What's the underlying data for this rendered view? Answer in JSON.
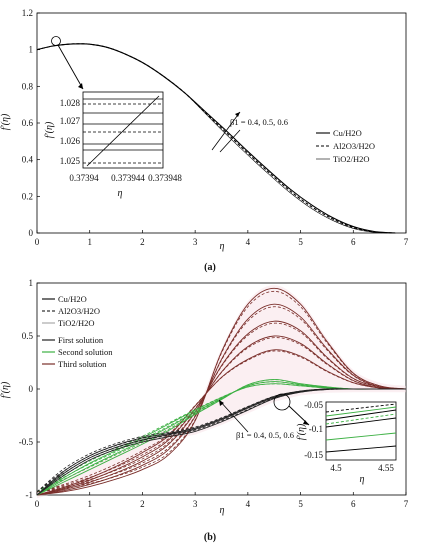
{
  "chart_data": [
    {
      "type": "line",
      "caption": "(a)",
      "xlabel": "η",
      "ylabel": "f′(η)",
      "xlim": [
        0,
        7
      ],
      "ylim": [
        0,
        1.2
      ],
      "xticks": [
        "0",
        "1",
        "2",
        "3",
        "4",
        "5",
        "6",
        "7"
      ],
      "yticks": [
        "0",
        "0.2",
        "0.4",
        "0.6",
        "0.8",
        "1",
        "1.2"
      ],
      "legend": [
        {
          "label": "Cu/H2O",
          "style": "solid"
        },
        {
          "label": "Al2O3/H2O",
          "style": "dashed"
        },
        {
          "label": "TiO2/H2O",
          "style": "thin"
        }
      ],
      "annotation": "β1 = 0.4, 0.5, 0.6",
      "x": [
        0,
        0.3,
        0.6,
        0.8,
        1.0,
        1.3,
        1.6,
        2.0,
        2.4,
        2.8,
        3.2,
        3.6,
        4.0,
        4.4,
        4.8,
        5.2,
        5.6,
        6.0,
        6.4,
        6.8
      ],
      "series": [
        {
          "values": [
            1.0,
            1.02,
            1.03,
            1.032,
            1.03,
            1.015,
            0.985,
            0.93,
            0.855,
            0.765,
            0.66,
            0.555,
            0.445,
            0.34,
            0.24,
            0.155,
            0.085,
            0.035,
            0.008,
            0.0
          ]
        },
        {
          "values": [
            1.0,
            1.02,
            1.03,
            1.032,
            1.03,
            1.015,
            0.985,
            0.93,
            0.855,
            0.765,
            0.655,
            0.545,
            0.435,
            0.33,
            0.23,
            0.145,
            0.078,
            0.03,
            0.006,
            0.0
          ]
        },
        {
          "values": [
            1.0,
            1.02,
            1.03,
            1.032,
            1.03,
            1.015,
            0.985,
            0.93,
            0.855,
            0.765,
            0.65,
            0.535,
            0.425,
            0.32,
            0.22,
            0.135,
            0.07,
            0.025,
            0.004,
            0.0
          ]
        }
      ],
      "inset": {
        "xlabel": "η",
        "ylabel": "f′(η)",
        "xticks": [
          "0.37394",
          "0.373944",
          "0.373948"
        ],
        "yticks": [
          "1.025",
          "1.026",
          "1.027",
          "1.028"
        ]
      }
    },
    {
      "type": "line",
      "caption": "(b)",
      "xlabel": "η",
      "ylabel": "f′(η)",
      "xlim": [
        0,
        7
      ],
      "ylim": [
        -1,
        1
      ],
      "xticks": [
        "0",
        "1",
        "2",
        "3",
        "4",
        "5",
        "6",
        "7"
      ],
      "yticks": [
        "-1",
        "-0.5",
        "0",
        "0.5",
        "1"
      ],
      "legend_materials": [
        {
          "label": "Cu/H2O",
          "style": "solid"
        },
        {
          "label": "Al2O3/H2O",
          "style": "dashed"
        },
        {
          "label": "TiO2/H2O",
          "style": "thin"
        }
      ],
      "legend_solutions": [
        {
          "label": "First solution",
          "color": "#222222"
        },
        {
          "label": "Second solution",
          "color": "#3cb043"
        },
        {
          "label": "Third solution",
          "color": "#7a2e2a"
        }
      ],
      "annotation": "β1 = 0.4, 0.5, 0.6",
      "x": [
        0,
        0.5,
        1.0,
        1.5,
        2.0,
        2.5,
        3.0,
        3.5,
        4.0,
        4.5,
        5.0,
        5.5,
        6.0,
        6.5,
        7.0
      ],
      "first": [
        [
          -1.0,
          -0.78,
          -0.63,
          -0.53,
          -0.46,
          -0.42,
          -0.37,
          -0.28,
          -0.17,
          -0.07,
          -0.02,
          0.0,
          0.0,
          0.0,
          0.0
        ],
        [
          -1.0,
          -0.8,
          -0.65,
          -0.55,
          -0.48,
          -0.43,
          -0.38,
          -0.29,
          -0.18,
          -0.08,
          -0.025,
          0.0,
          0.0,
          0.0,
          0.0
        ],
        [
          -1.0,
          -0.82,
          -0.67,
          -0.57,
          -0.5,
          -0.45,
          -0.4,
          -0.31,
          -0.2,
          -0.09,
          -0.03,
          -0.005,
          0.0,
          0.0,
          0.0
        ]
      ],
      "second": [
        [
          -1.0,
          -0.84,
          -0.7,
          -0.58,
          -0.46,
          -0.33,
          -0.2,
          -0.08,
          0.02,
          0.05,
          0.03,
          0.01,
          0.0,
          0.0,
          0.0
        ],
        [
          -1.0,
          -0.86,
          -0.73,
          -0.61,
          -0.49,
          -0.36,
          -0.22,
          -0.09,
          0.03,
          0.07,
          0.04,
          0.015,
          0.0,
          0.0,
          0.0
        ],
        [
          -1.0,
          -0.88,
          -0.76,
          -0.64,
          -0.52,
          -0.39,
          -0.24,
          -0.1,
          0.04,
          0.09,
          0.05,
          0.02,
          0.0,
          0.0,
          0.0
        ]
      ],
      "third": [
        [
          -1.0,
          -0.97,
          -0.92,
          -0.85,
          -0.76,
          -0.62,
          -0.3,
          0.35,
          0.8,
          0.95,
          0.8,
          0.45,
          0.15,
          0.03,
          0.0
        ],
        [
          -1.0,
          -0.96,
          -0.9,
          -0.82,
          -0.72,
          -0.57,
          -0.26,
          0.28,
          0.66,
          0.8,
          0.68,
          0.38,
          0.13,
          0.02,
          0.0
        ],
        [
          -1.0,
          -0.95,
          -0.88,
          -0.79,
          -0.68,
          -0.52,
          -0.22,
          0.22,
          0.52,
          0.64,
          0.55,
          0.3,
          0.1,
          0.02,
          0.0
        ],
        [
          -1.0,
          -0.94,
          -0.86,
          -0.76,
          -0.64,
          -0.48,
          -0.19,
          0.16,
          0.4,
          0.5,
          0.43,
          0.24,
          0.08,
          0.01,
          0.0
        ],
        [
          -1.0,
          -0.93,
          -0.84,
          -0.73,
          -0.6,
          -0.44,
          -0.16,
          0.11,
          0.28,
          0.37,
          0.31,
          0.17,
          0.06,
          0.01,
          0.0
        ]
      ],
      "inset": {
        "xlabel": "η",
        "ylabel": "f′(η)",
        "xticks": [
          "4.5",
          "4.55"
        ],
        "yticks": [
          "-0.05",
          "-0.1",
          "-0.15"
        ]
      }
    }
  ]
}
